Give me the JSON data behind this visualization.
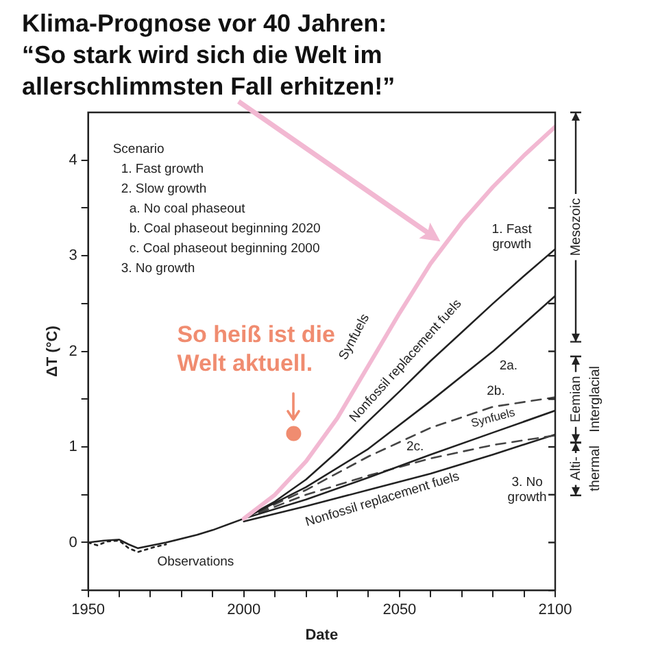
{
  "chart_data": {
    "type": "line",
    "title": "Klima-Prognose vor 40 Jahren:",
    "subtitle": "“So stark wird sich die Welt im allerschlimmsten Fall erhitzen!”",
    "xlabel": "Date",
    "ylabel": "ΔT (°C)",
    "xlim": [
      1950,
      2100
    ],
    "ylim": [
      -0.5,
      4.5
    ],
    "xticks": [
      1950,
      {
        "value": 1960,
        "label": null
      },
      {
        "value": 1970,
        "label": null
      },
      {
        "value": 1980,
        "label": null
      },
      {
        "value": 1990,
        "label": null
      },
      2000,
      {
        "value": 2010,
        "label": null
      },
      {
        "value": 2020,
        "label": null
      },
      {
        "value": 2030,
        "label": null
      },
      {
        "value": 2040,
        "label": null
      },
      2050,
      {
        "value": 2060,
        "label": null
      },
      {
        "value": 2070,
        "label": null
      },
      {
        "value": 2080,
        "label": null
      },
      {
        "value": 2090,
        "label": null
      },
      2100
    ],
    "yticks": [
      {
        "value": -0.5,
        "label": null
      },
      0,
      {
        "value": 0.5,
        "label": null
      },
      1,
      {
        "value": 1.5,
        "label": null
      },
      2,
      {
        "value": 2.5,
        "label": null
      },
      3,
      {
        "value": 3.5,
        "label": null
      },
      4
    ],
    "grid": false,
    "legend": false,
    "series": [
      {
        "color": "#222222",
        "line_style": "dotted",
        "x": [
          1950,
          1953,
          1956,
          1960,
          1963,
          1966,
          1968,
          1971,
          1975
        ],
        "values": [
          0,
          -0.03,
          0.01,
          0.02,
          -0.06,
          -0.1,
          -0.08,
          -0.05,
          -0.02
        ]
      },
      {
        "color": "#f2b8d2",
        "line_style": "solid",
        "x": [
          2000,
          2010,
          2020,
          2030,
          2040,
          2050,
          2060,
          2070,
          2080,
          2090,
          2100
        ],
        "values": [
          0.25,
          0.5,
          0.85,
          1.3,
          1.85,
          2.4,
          2.92,
          3.35,
          3.72,
          4.05,
          4.35
        ]
      },
      {
        "color": "#222222",
        "line_style": "solid",
        "x": [
          1950,
          1955,
          1960,
          1963,
          1966,
          1969,
          1972,
          1975,
          1985,
          1990,
          2000,
          2010,
          2020,
          2030,
          2040,
          2050,
          2060,
          2070,
          2080,
          2090,
          2100
        ],
        "values": [
          0,
          0.02,
          0.03,
          -0.02,
          -0.06,
          -0.04,
          -0.02,
          0,
          0.08,
          0.13,
          0.25,
          0.43,
          0.66,
          0.95,
          1.27,
          1.58,
          1.9,
          2.2,
          2.5,
          2.79,
          3.07
        ]
      },
      {
        "color": "#222222",
        "line_style": "solid",
        "x": [
          2000,
          2020,
          2040,
          2060,
          2080,
          2100
        ],
        "values": [
          0.25,
          0.58,
          0.98,
          1.48,
          2.0,
          2.58
        ]
      },
      {
        "color": "#444444",
        "line_style": "dashed",
        "x": [
          2000,
          2020,
          2040,
          2060,
          2080,
          2100
        ],
        "values": [
          0.25,
          0.55,
          0.9,
          1.2,
          1.42,
          1.52
        ]
      },
      {
        "color": "#222222",
        "line_style": "solid",
        "x": [
          2000,
          2020,
          2040,
          2060,
          2080,
          2100
        ],
        "values": [
          0.25,
          0.45,
          0.68,
          0.92,
          1.15,
          1.38
        ]
      },
      {
        "color": "#444444",
        "line_style": "dashed",
        "x": [
          2000,
          2020,
          2040,
          2060,
          2080,
          2100
        ],
        "values": [
          0.25,
          0.5,
          0.7,
          0.88,
          1.02,
          1.12
        ]
      },
      {
        "color": "#222222",
        "line_style": "solid",
        "x": [
          2000,
          2020,
          2040,
          2060,
          2080,
          2100
        ],
        "values": [
          0.22,
          0.38,
          0.55,
          0.72,
          0.92,
          1.13
        ]
      },
      {
        "type": "scatter",
        "color": "#f08c70",
        "marker": "circle",
        "x": [
          2016
        ],
        "values": [
          1.14
        ]
      }
    ],
    "annotations": [
      "Scenario",
      "1. Fast growth",
      "2. Slow growth",
      "a. No coal phaseout",
      "b. Coal phaseout beginning 2020",
      "c. Coal phaseout beginning 2000",
      "3. No growth",
      "Synfuels",
      "Nonfossil replacement fuels",
      "Nonfossil replacement fuels",
      "Observations",
      "Mesozoic",
      "Eemian",
      "Interglacial",
      "Alti-",
      "thermal",
      "1. Fast growth",
      "2a.",
      "2b.",
      "Synfuels",
      "2c.",
      "3. No growth",
      {
        "text": "So heiß ist die Welt aktuell.",
        "x": 2016,
        "y": 1.14
      }
    ]
  }
}
